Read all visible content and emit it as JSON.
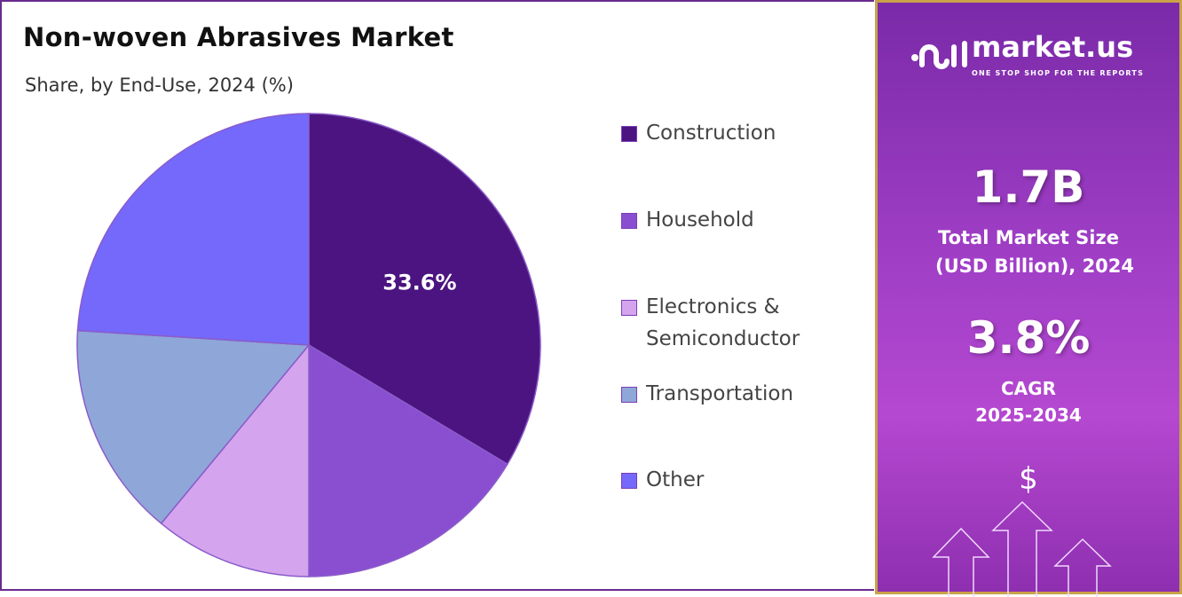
{
  "chart_data": {
    "type": "pie",
    "title": "Non-woven Abrasives Market",
    "subtitle": "Share, by End-Use, 2024 (%)",
    "legend_position": "right",
    "slices": [
      {
        "label": "Construction",
        "value": 33.6,
        "color": "#4b1480",
        "data_label": "33.6%"
      },
      {
        "label": "Household",
        "value": 16.4,
        "color": "#8a4fd0"
      },
      {
        "label": "Electronics & Semiconductor",
        "value": 11.0,
        "color": "#d4a5ee"
      },
      {
        "label": "Transportation",
        "value": 15.0,
        "color": "#8fa6d9"
      },
      {
        "label": "Other",
        "value": 24.0,
        "color": "#7469fb"
      }
    ]
  },
  "legend": [
    {
      "line1": "Construction"
    },
    {
      "line1": "Household"
    },
    {
      "line1": "Electronics &",
      "line2": "Semiconductor"
    },
    {
      "line1": "Transportation"
    },
    {
      "line1": "Other"
    }
  ],
  "panel": {
    "brand": "market.us",
    "tagline": "ONE STOP SHOP FOR THE REPORTS",
    "market_size": "1.7B",
    "market_size_label1": "Total Market Size",
    "market_size_label2": "(USD Billion), 2024",
    "cagr": "3.8%",
    "cagr_label1": "CAGR",
    "cagr_label2": "2025-2034",
    "dollar": "$"
  }
}
